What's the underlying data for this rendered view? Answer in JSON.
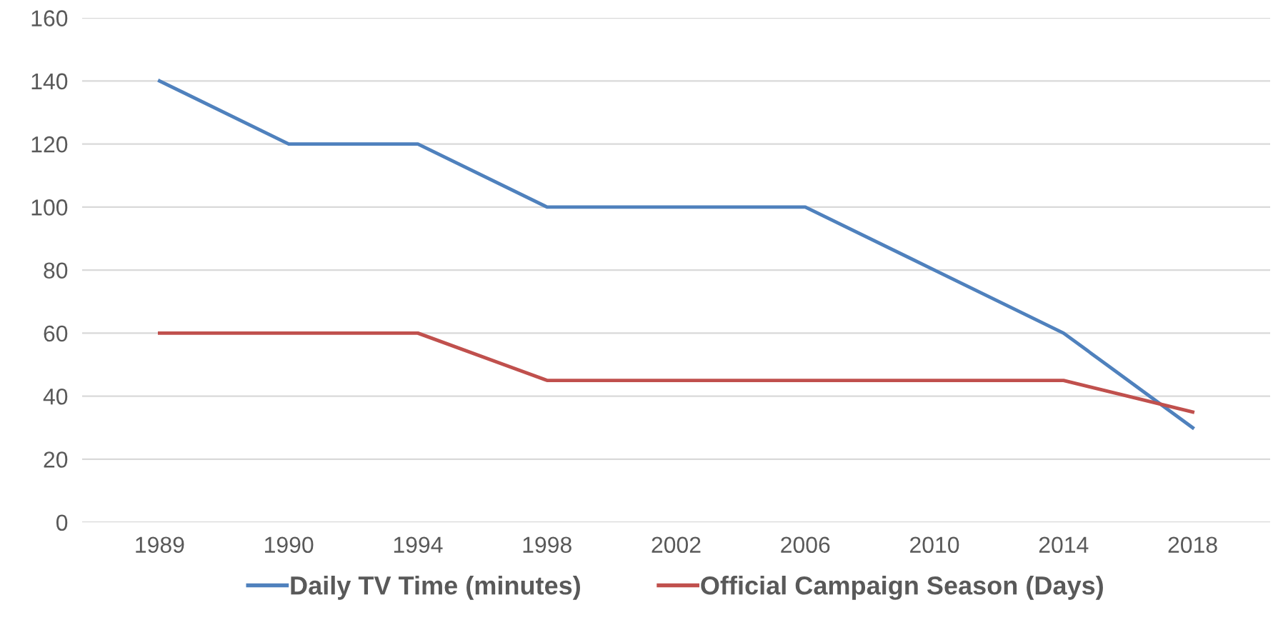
{
  "chart_data": {
    "type": "line",
    "categories": [
      "1989",
      "1990",
      "1994",
      "1998",
      "2002",
      "2006",
      "2010",
      "2014",
      "2018"
    ],
    "series": [
      {
        "name": "Daily TV Time (minutes)",
        "color": "#4f81bd",
        "values": [
          140,
          120,
          120,
          100,
          100,
          100,
          80,
          60,
          30
        ]
      },
      {
        "name": "Official Campaign Season (Days)",
        "color": "#c0504d",
        "values": [
          60,
          60,
          60,
          45,
          45,
          45,
          45,
          45,
          35
        ]
      }
    ],
    "ylim": [
      0,
      160
    ],
    "yticks": [
      0,
      20,
      40,
      60,
      80,
      100,
      120,
      140,
      160
    ],
    "grid": "y",
    "legend": "bottom",
    "marker": "none",
    "line_style": "solid"
  }
}
